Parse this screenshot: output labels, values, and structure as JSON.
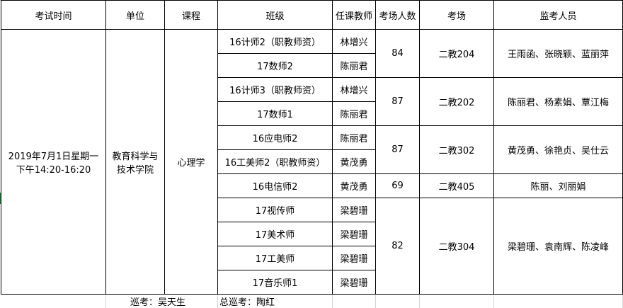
{
  "headers": [
    "考试时间",
    "单位",
    "课程",
    "班级",
    "任课教师",
    "考场人数",
    "考场",
    "监考人员"
  ],
  "exam_time": "2019年7月1日星期一\n下午14:20-16:20",
  "exam_time_line1": "2019年7月1日星期一",
  "exam_time_line2": "下午14:20-16:20",
  "unit_line1": "教育科学与",
  "unit_line2": "技术学院",
  "course": "心理学",
  "rooms": [
    {
      "count": "84",
      "room": "二教204",
      "proctors": "王雨函、张晓颖、蓝丽萍",
      "classes": [
        {
          "class": "16计师2（职教师资）",
          "teacher": "林增兴"
        },
        {
          "class": "17数师2",
          "teacher": "陈丽君"
        }
      ]
    },
    {
      "count": "87",
      "room": "二教202",
      "proctors": "陈丽君、杨素娟、覃江梅",
      "classes": [
        {
          "class": "16计师3（职教师资）",
          "teacher": "林增兴"
        },
        {
          "class": "17数师1",
          "teacher": "陈丽君"
        }
      ]
    },
    {
      "count": "87",
      "room": "二教302",
      "proctors": "黄茂勇、徐艳贞、吴仕云",
      "classes": [
        {
          "class": "16应电师2",
          "teacher": "陈丽君"
        },
        {
          "class": "16工美师2（职教师资）",
          "teacher": "黄茂勇"
        }
      ]
    },
    {
      "count": "69",
      "room": "二教405",
      "proctors": "陈丽、刘丽娟",
      "classes": [
        {
          "class": "16电信师2",
          "teacher": "黄茂勇"
        }
      ]
    },
    {
      "count": "82",
      "room": "二教304",
      "proctors": "梁碧珊、袁南辉、陈凌峰",
      "classes": [
        {
          "class": "17视传师",
          "teacher": "梁碧珊"
        },
        {
          "class": "17美术师",
          "teacher": "梁碧珊"
        },
        {
          "class": "17工美师",
          "teacher": "梁碧珊"
        },
        {
          "class": "17音乐师1",
          "teacher": "梁碧珊"
        }
      ]
    }
  ],
  "footer": {
    "patrol": "巡考：吴天生",
    "chief_patrol": "总巡考：陶红"
  },
  "colors": {
    "grid": "#000000",
    "light_grid": "#d4d4d4",
    "row_marker": "#1e7a3c"
  }
}
